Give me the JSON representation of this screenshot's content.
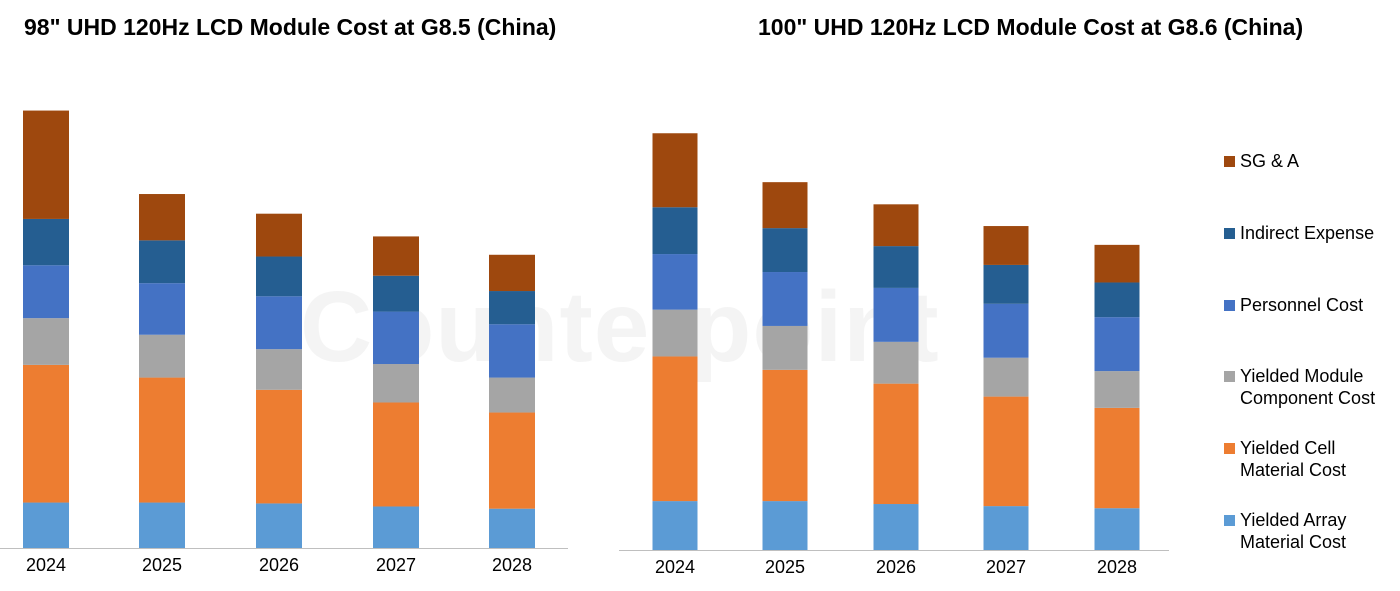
{
  "chart_data": [
    {
      "type": "bar",
      "stacked": true,
      "title": "98\" UHD 120Hz LCD Module Cost at G8.5 (China)",
      "categories": [
        "2024",
        "2025",
        "2026",
        "2027",
        "2028"
      ],
      "ylim": [
        0,
        100
      ],
      "grid": false,
      "series": [
        {
          "name": "Yielded Array Material Cost",
          "color": "#5B9BD5",
          "values": [
            10.4,
            10.4,
            10.2,
            9.5,
            9.0
          ]
        },
        {
          "name": "Yielded Cell Material Cost",
          "color": "#ED7D31",
          "values": [
            31.5,
            28.6,
            26.0,
            23.8,
            22.0
          ]
        },
        {
          "name": "Yielded Module Component Cost",
          "color": "#A5A5A5",
          "values": [
            10.7,
            9.8,
            9.3,
            8.8,
            8.0
          ]
        },
        {
          "name": "Personnel Cost",
          "color": "#4472C4",
          "values": [
            12.1,
            11.8,
            12.1,
            12.0,
            12.2
          ]
        },
        {
          "name": "Indirect Expense",
          "color": "#255E91",
          "values": [
            10.6,
            9.8,
            9.1,
            8.2,
            7.6
          ]
        },
        {
          "name": "SG & A",
          "color": "#9E480E",
          "values": [
            24.8,
            10.6,
            9.8,
            9.0,
            8.3
          ]
        }
      ]
    },
    {
      "type": "bar",
      "stacked": true,
      "title": "100\" UHD 120Hz LCD Module Cost at G8.6 (China)",
      "categories": [
        "2024",
        "2025",
        "2026",
        "2027",
        "2028"
      ],
      "ylim": [
        0,
        100
      ],
      "grid": false,
      "series": [
        {
          "name": "Yielded Array Material Cost",
          "color": "#5B9BD5",
          "values": [
            11.7,
            11.7,
            11.0,
            10.5,
            10.0
          ]
        },
        {
          "name": "Yielded Cell Material Cost",
          "color": "#ED7D31",
          "values": [
            34.6,
            31.4,
            28.8,
            26.2,
            24.0
          ]
        },
        {
          "name": "Yielded Module Component Cost",
          "color": "#A5A5A5",
          "values": [
            11.2,
            10.5,
            10.0,
            9.3,
            8.8
          ]
        },
        {
          "name": "Personnel Cost",
          "color": "#4472C4",
          "values": [
            13.3,
            12.9,
            12.9,
            12.9,
            12.9
          ]
        },
        {
          "name": "Indirect Expense",
          "color": "#255E91",
          "values": [
            11.2,
            10.5,
            10.0,
            9.3,
            8.3
          ]
        },
        {
          "name": "SG & A",
          "color": "#9E480E",
          "values": [
            17.7,
            11.0,
            10.0,
            9.3,
            9.0
          ]
        }
      ]
    }
  ],
  "legend": {
    "placement": "right",
    "items": [
      {
        "label": "SG & A",
        "color": "#9E480E"
      },
      {
        "label": "Indirect Expense",
        "color": "#255E91"
      },
      {
        "label": "Personnel Cost",
        "color": "#4472C4"
      },
      {
        "label": "Yielded Module Component Cost",
        "color": "#A5A5A5"
      },
      {
        "label": "Yielded Cell Material Cost",
        "color": "#ED7D31"
      },
      {
        "label": "Yielded Array Material Cost",
        "color": "#5B9BD5"
      }
    ]
  },
  "watermark": "Counterpoint"
}
